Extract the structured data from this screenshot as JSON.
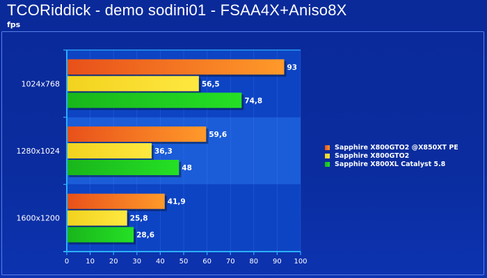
{
  "title": "TCORiddick - demo sodini01 - FSAA4X+Aniso8X",
  "subtitle": "fps",
  "colors": {
    "series": [
      "#e8501a",
      "#f2d21e",
      "#19b51b"
    ],
    "series_light": [
      "#ff9a2a",
      "#ffe840",
      "#25e025"
    ],
    "plot_band_a": "#0d44c4",
    "plot_band_b": "#1b5cd8",
    "plot_border": "#2bb0ff"
  },
  "chart_data": {
    "type": "bar",
    "orientation": "horizontal",
    "categories": [
      "1024x768",
      "1280x1024",
      "1600x1200"
    ],
    "series": [
      {
        "name": "Sapphire X800GTO2 @X850XT PE",
        "values": [
          93,
          59.6,
          41.9
        ],
        "labels": [
          "93",
          "59,6",
          "41,9"
        ]
      },
      {
        "name": "Sapphire X800GTO2",
        "values": [
          56.5,
          36.3,
          25.8
        ],
        "labels": [
          "56,5",
          "36,3",
          "25,8"
        ]
      },
      {
        "name": "Sapphire X800XL Catalyst 5.8",
        "values": [
          74.8,
          48,
          28.6
        ],
        "labels": [
          "74,8",
          "48",
          "28,6"
        ]
      }
    ],
    "xlim": [
      0,
      100
    ],
    "xticks": [
      "0",
      "10",
      "20",
      "30",
      "40",
      "50",
      "60",
      "70",
      "80",
      "90",
      "100"
    ],
    "grid": true,
    "legend_position": "right"
  }
}
